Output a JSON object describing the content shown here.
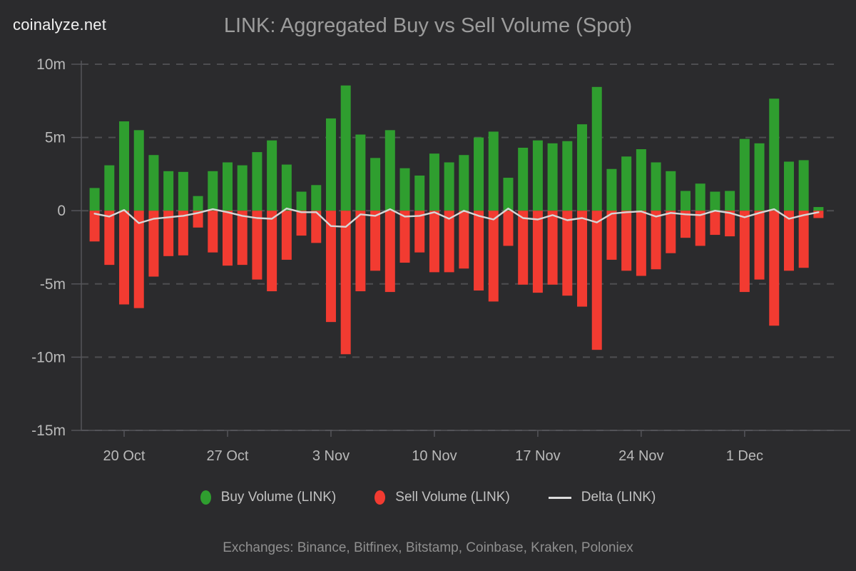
{
  "header": {
    "logo": "coinalyze.net",
    "title": "LINK: Aggregated Buy vs Sell Volume (Spot)"
  },
  "chart_data": {
    "type": "bar",
    "title": "LINK: Aggregated Buy vs Sell Volume (Spot)",
    "value_unit": "millions",
    "categories": [
      "18 Oct",
      "19 Oct",
      "20 Oct",
      "21 Oct",
      "22 Oct",
      "23 Oct",
      "24 Oct",
      "25 Oct",
      "26 Oct",
      "27 Oct",
      "28 Oct",
      "29 Oct",
      "30 Oct",
      "31 Oct",
      "1 Nov",
      "2 Nov",
      "3 Nov",
      "4 Nov",
      "5 Nov",
      "6 Nov",
      "7 Nov",
      "8 Nov",
      "9 Nov",
      "10 Nov",
      "11 Nov",
      "12 Nov",
      "13 Nov",
      "14 Nov",
      "15 Nov",
      "16 Nov",
      "17 Nov",
      "18 Nov",
      "19 Nov",
      "20 Nov",
      "21 Nov",
      "22 Nov",
      "23 Nov",
      "24 Nov",
      "25 Nov",
      "26 Nov",
      "27 Nov",
      "28 Nov",
      "29 Nov",
      "30 Nov",
      "1 Dec",
      "2 Dec",
      "3 Dec",
      "4 Dec",
      "5 Dec",
      "6 Dec"
    ],
    "series": [
      {
        "name": "Buy Volume (LINK)",
        "type": "bar",
        "color": "#2f9e2f",
        "values": [
          1.55,
          3.1,
          6.1,
          5.5,
          3.8,
          2.7,
          2.65,
          1.0,
          2.7,
          3.3,
          3.1,
          4.0,
          4.8,
          3.15,
          1.3,
          1.75,
          6.3,
          8.55,
          5.2,
          3.6,
          5.5,
          2.9,
          2.4,
          3.9,
          3.3,
          3.8,
          5.0,
          5.4,
          2.25,
          4.3,
          4.8,
          4.6,
          4.75,
          5.9,
          8.45,
          2.85,
          3.7,
          4.2,
          3.3,
          2.7,
          1.35,
          1.85,
          1.3,
          1.35,
          4.9,
          4.6,
          7.65,
          3.35,
          3.45,
          0.25
        ]
      },
      {
        "name": "Sell Volume (LINK)",
        "type": "bar",
        "color": "#f23b31",
        "values": [
          -2.1,
          -3.7,
          -6.4,
          -6.65,
          -4.5,
          -3.1,
          -3.05,
          -1.15,
          -2.85,
          -3.75,
          -3.7,
          -4.7,
          -5.5,
          -3.35,
          -1.7,
          -2.2,
          -7.6,
          -9.8,
          -5.5,
          -4.1,
          -5.55,
          -3.55,
          -2.85,
          -4.2,
          -4.2,
          -3.95,
          -5.45,
          -6.2,
          -2.4,
          -5.05,
          -5.6,
          -5.05,
          -5.8,
          -6.55,
          -9.5,
          -3.35,
          -4.1,
          -4.45,
          -4.0,
          -2.9,
          -1.85,
          -2.4,
          -1.65,
          -1.75,
          -5.55,
          -4.7,
          -7.85,
          -4.1,
          -3.9,
          -0.5
        ]
      },
      {
        "name": "Delta (LINK)",
        "type": "line",
        "color": "#d6d6d6",
        "values": [
          -0.2,
          -0.4,
          0.05,
          -0.85,
          -0.55,
          -0.45,
          -0.35,
          -0.15,
          0.1,
          -0.1,
          -0.35,
          -0.5,
          -0.55,
          0.15,
          -0.1,
          -0.1,
          -1.05,
          -1.1,
          -0.25,
          -0.35,
          0.1,
          -0.4,
          -0.35,
          -0.1,
          -0.55,
          0.0,
          -0.35,
          -0.6,
          0.15,
          -0.5,
          -0.6,
          -0.3,
          -0.65,
          -0.5,
          -0.8,
          -0.2,
          -0.1,
          -0.05,
          -0.4,
          -0.15,
          -0.25,
          -0.3,
          0.0,
          -0.15,
          -0.45,
          -0.15,
          0.1,
          -0.55,
          -0.3,
          -0.1
        ]
      }
    ],
    "ylim": [
      -15,
      10
    ],
    "y_ticks": [
      {
        "label": "10m",
        "value": 10
      },
      {
        "label": "5m",
        "value": 5
      },
      {
        "label": "0",
        "value": 0
      },
      {
        "label": "-5m",
        "value": -5
      },
      {
        "label": "-10m",
        "value": -10
      },
      {
        "label": "-15m",
        "value": -15
      }
    ],
    "x_ticks": [
      {
        "label": "20 Oct",
        "index": 2
      },
      {
        "label": "27 Oct",
        "index": 9
      },
      {
        "label": "3 Nov",
        "index": 16
      },
      {
        "label": "10 Nov",
        "index": 23
      },
      {
        "label": "17 Nov",
        "index": 30
      },
      {
        "label": "24 Nov",
        "index": 37
      },
      {
        "label": "1 Dec",
        "index": 44
      }
    ],
    "grid": "dashed-horizontal",
    "legend_position": "bottom"
  },
  "legend": {
    "items": [
      {
        "label": "Buy Volume (LINK)",
        "marker": "dot",
        "color": "#2f9e2f"
      },
      {
        "label": "Sell Volume (LINK)",
        "marker": "dot",
        "color": "#f23b31"
      },
      {
        "label": "Delta (LINK)",
        "marker": "line",
        "color": "#dcdcdc"
      }
    ]
  },
  "footer": {
    "exchanges_note": "Exchanges: Binance, Bitfinex, Bitstamp, Coinbase, Kraken, Poloniex"
  },
  "colors": {
    "background": "#2b2b2d",
    "grid": "#4e4e51",
    "axis": "#55555a",
    "tick_label": "#b9b9b9",
    "title": "#9c9c9c",
    "buy": "#2f9e2f",
    "sell": "#f23b31",
    "delta": "#d6d6d6"
  }
}
